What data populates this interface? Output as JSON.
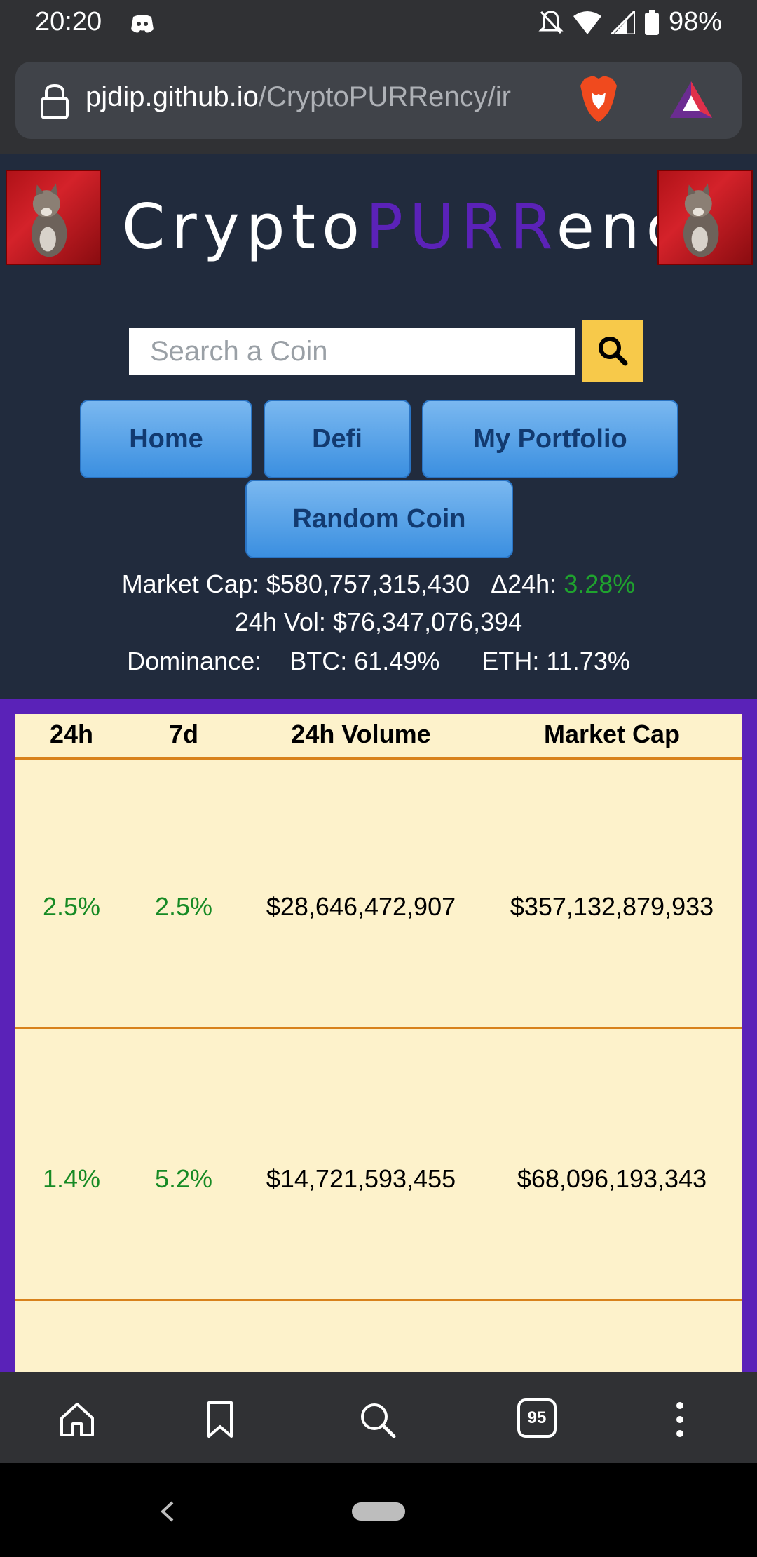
{
  "status_bar": {
    "time": "20:20",
    "battery": "98%",
    "icons": [
      "discord-icon",
      "mute-icon",
      "wifi-icon",
      "signal-icon",
      "battery-icon"
    ]
  },
  "browser": {
    "url_host": "pjdip.github.io",
    "url_path": "/CryptoPURRency/ir",
    "tab_count": "95",
    "icons": [
      "lock-icon",
      "brave-shield-icon",
      "bat-rewards-icon",
      "home-icon",
      "bookmark-icon",
      "search-icon",
      "tabs-icon",
      "menu-icon"
    ]
  },
  "site": {
    "title_prefix": "Crypto",
    "title_highlight": "PURR",
    "title_suffix": "ency",
    "accent_color": "#5b22b8"
  },
  "search": {
    "placeholder": "Search a Coin"
  },
  "nav": {
    "home": "Home",
    "defi": "Defi",
    "portfolio": "My Portfolio",
    "random": "Random Coin"
  },
  "stats": {
    "market_cap_label": "Market Cap:",
    "market_cap_value": "$580,757,315,430",
    "delta_label": "Δ24h:",
    "delta_value": "3.28%",
    "vol_label": "24h Vol:",
    "vol_value": "$76,347,076,394",
    "dominance_label": "Dominance:",
    "btc_label": "BTC:",
    "btc_value": "61.49%",
    "eth_label": "ETH:",
    "eth_value": "11.73%"
  },
  "table": {
    "headers": {
      "h24": "24h",
      "d7": "7d",
      "volume": "24h Volume",
      "market_cap": "Market Cap"
    },
    "rows": [
      {
        "h24": "2.5%",
        "d7": "2.5%",
        "volume": "$28,646,472,907",
        "market_cap": "$357,132,879,933"
      },
      {
        "h24": "1.4%",
        "d7": "5.2%",
        "volume": "$14,721,593,455",
        "market_cap": "$68,096,193,343"
      }
    ]
  }
}
